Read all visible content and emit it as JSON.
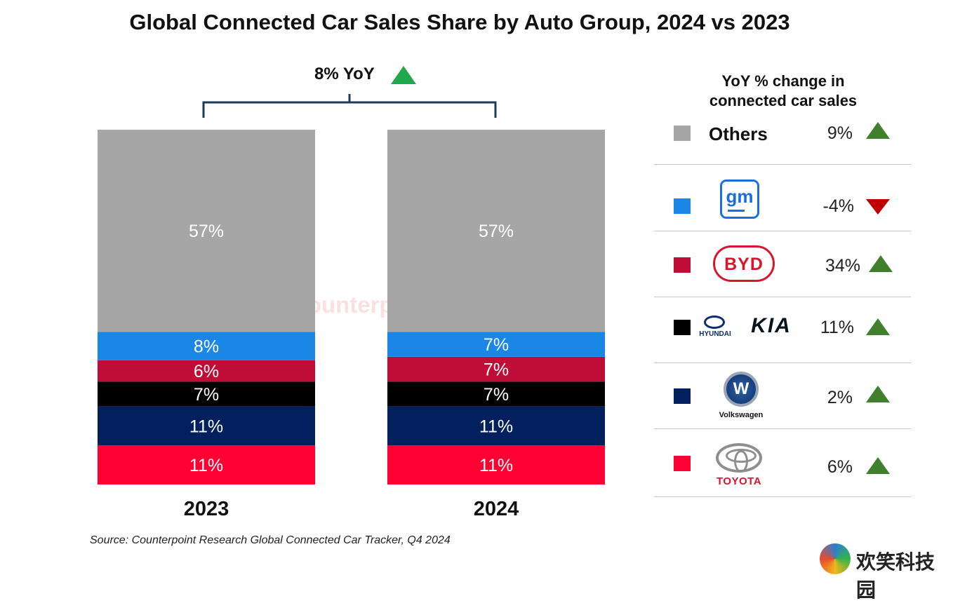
{
  "chart_data": {
    "type": "bar",
    "stacked": true,
    "title": "Global Connected Car Sales Share by Auto Group, 2024 vs 2023",
    "categories": [
      "2023",
      "2024"
    ],
    "series": [
      {
        "name": "Others",
        "values": [
          57,
          57
        ],
        "labels": [
          "57%",
          "57%"
        ],
        "color": "#a6a6a6"
      },
      {
        "name": "GM",
        "values": [
          8,
          7
        ],
        "labels": [
          "8%",
          "7%"
        ],
        "color": "#1a86e6"
      },
      {
        "name": "BYD",
        "values": [
          6,
          7
        ],
        "labels": [
          "6%",
          "7%"
        ],
        "color": "#c00d37"
      },
      {
        "name": "Hyundai-Kia",
        "values": [
          7,
          7
        ],
        "labels": [
          "7%",
          "7%"
        ],
        "color": "#000000"
      },
      {
        "name": "Volkswagen",
        "values": [
          11,
          11
        ],
        "labels": [
          "11%",
          "11%"
        ],
        "color": "#03205e"
      },
      {
        "name": "Toyota",
        "values": [
          11,
          11
        ],
        "labels": [
          "11%",
          "11%"
        ],
        "color": "#ff0033"
      }
    ],
    "ylim": [
      0,
      100
    ],
    "grid": false,
    "annotation": {
      "text": "8% YoY",
      "direction": "up",
      "color": "#22a84c"
    }
  },
  "legend": {
    "heading_line1": "YoY % change in",
    "heading_line2": "connected car sales",
    "rows": [
      {
        "brand": "Others",
        "label": "Others",
        "change": "9%",
        "direction": "up",
        "color": "#a6a6a6"
      },
      {
        "brand": "GM",
        "logo_text": "gm",
        "change": "-4%",
        "direction": "down",
        "color": "#1a86e6"
      },
      {
        "brand": "BYD",
        "logo_text": "BYD",
        "change": "34%",
        "direction": "up",
        "color": "#c00d37"
      },
      {
        "brand": "Hyundai-Kia",
        "logo_text_1": "HYUNDAI",
        "logo_text_2": "KIA",
        "change": "11%",
        "direction": "up",
        "color": "#000000"
      },
      {
        "brand": "Volkswagen",
        "logo_text": "Volkswagen",
        "change": "2%",
        "direction": "up",
        "color": "#03205e"
      },
      {
        "brand": "Toyota",
        "logo_text": "TOYOTA",
        "change": "6%",
        "direction": "up",
        "color": "#ff0033"
      }
    ]
  },
  "watermark": "Counterpoint",
  "source": "Source: Counterpoint Research Global Connected Car Tracker, Q4 2024",
  "site_mark_text": "欢笑科技园"
}
